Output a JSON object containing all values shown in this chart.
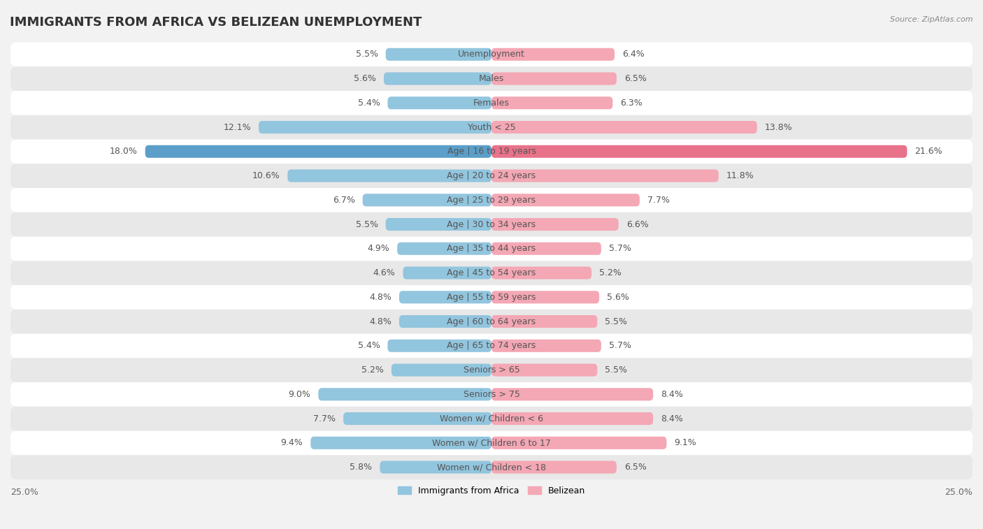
{
  "title": "IMMIGRANTS FROM AFRICA VS BELIZEAN UNEMPLOYMENT",
  "source": "Source: ZipAtlas.com",
  "categories": [
    "Unemployment",
    "Males",
    "Females",
    "Youth < 25",
    "Age | 16 to 19 years",
    "Age | 20 to 24 years",
    "Age | 25 to 29 years",
    "Age | 30 to 34 years",
    "Age | 35 to 44 years",
    "Age | 45 to 54 years",
    "Age | 55 to 59 years",
    "Age | 60 to 64 years",
    "Age | 65 to 74 years",
    "Seniors > 65",
    "Seniors > 75",
    "Women w/ Children < 6",
    "Women w/ Children 6 to 17",
    "Women w/ Children < 18"
  ],
  "africa_values": [
    5.5,
    5.6,
    5.4,
    12.1,
    18.0,
    10.6,
    6.7,
    5.5,
    4.9,
    4.6,
    4.8,
    4.8,
    5.4,
    5.2,
    9.0,
    7.7,
    9.4,
    5.8
  ],
  "belize_values": [
    6.4,
    6.5,
    6.3,
    13.8,
    21.6,
    11.8,
    7.7,
    6.6,
    5.7,
    5.2,
    5.6,
    5.5,
    5.7,
    5.5,
    8.4,
    8.4,
    9.1,
    6.5
  ],
  "africa_color": "#92c5de",
  "belize_color": "#f4a7b4",
  "africa_highlight_color": "#5b9ec9",
  "belize_highlight_color": "#e8728a",
  "highlight_row": 4,
  "xlim": 25.0,
  "background_color": "#f2f2f2",
  "row_bg_light": "#ffffff",
  "row_bg_dark": "#e8e8e8",
  "bar_height": 0.52,
  "label_fontsize": 9,
  "category_fontsize": 9,
  "title_fontsize": 13
}
